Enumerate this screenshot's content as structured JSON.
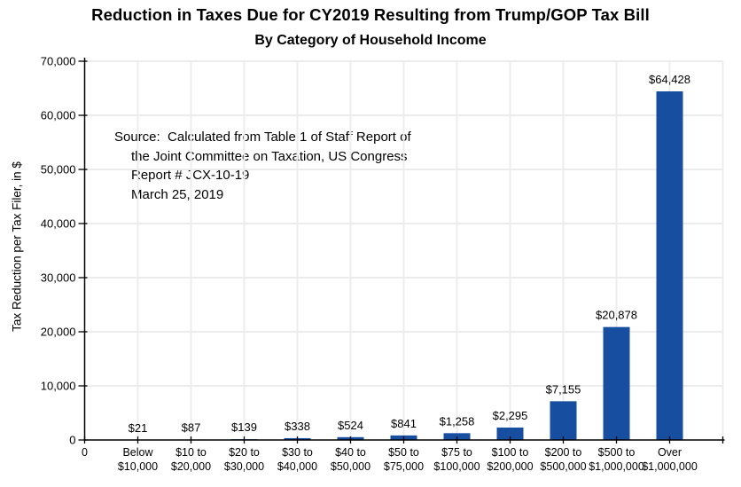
{
  "title": "Reduction in Taxes Due for CY2019 Resulting from Trump/GOP Tax Bill",
  "subtitle": "By Category of Household Income",
  "source_note": {
    "lines": [
      "Source:  Calculated from Table 1 of Staff Report of",
      "the Joint Committee on Taxation, US Congress",
      "Report # JCX-10-19",
      "March 25, 2019"
    ]
  },
  "colors": {
    "bar": "#174EA0",
    "grid": "#ECECEC",
    "axis": "#000000",
    "text": "#000000",
    "background": "#FFFFFF"
  },
  "chart_data": {
    "type": "bar",
    "title": "Reduction in Taxes Due for CY2019 Resulting from Trump/GOP Tax Bill",
    "subtitle": "By Category of Household Income",
    "categories": [
      [
        "Below",
        "$10,000"
      ],
      [
        "$10 to",
        "$20,000"
      ],
      [
        "$20 to",
        "$30,000"
      ],
      [
        "$30 to",
        "$40,000"
      ],
      [
        "$40 to",
        "$50,000"
      ],
      [
        "$50 to",
        "$75,000"
      ],
      [
        "$75 to",
        "$100,000"
      ],
      [
        "$100 to",
        "$200,000"
      ],
      [
        "$200 to",
        "$500,000"
      ],
      [
        "$500 to",
        "$1,000,000"
      ],
      [
        "Over",
        "$1,000,000"
      ]
    ],
    "values": [
      21,
      87,
      139,
      338,
      524,
      841,
      1258,
      2295,
      7155,
      20878,
      64428
    ],
    "value_labels": [
      "$21",
      "$87",
      "$139",
      "$338",
      "$524",
      "$841",
      "$1,258",
      "$2,295",
      "$7,155",
      "$20,878",
      "$64,428"
    ],
    "origin_label": "0",
    "xlabel": "",
    "ylabel": "Tax Reduction per Tax Filer, in $",
    "ylim": [
      0,
      70000
    ],
    "ytick_interval": 10000,
    "ytick_labels": [
      "0",
      "10,000",
      "20,000",
      "30,000",
      "40,000",
      "50,000",
      "60,000",
      "70,000"
    ],
    "grid": true,
    "legend_position": "none"
  }
}
